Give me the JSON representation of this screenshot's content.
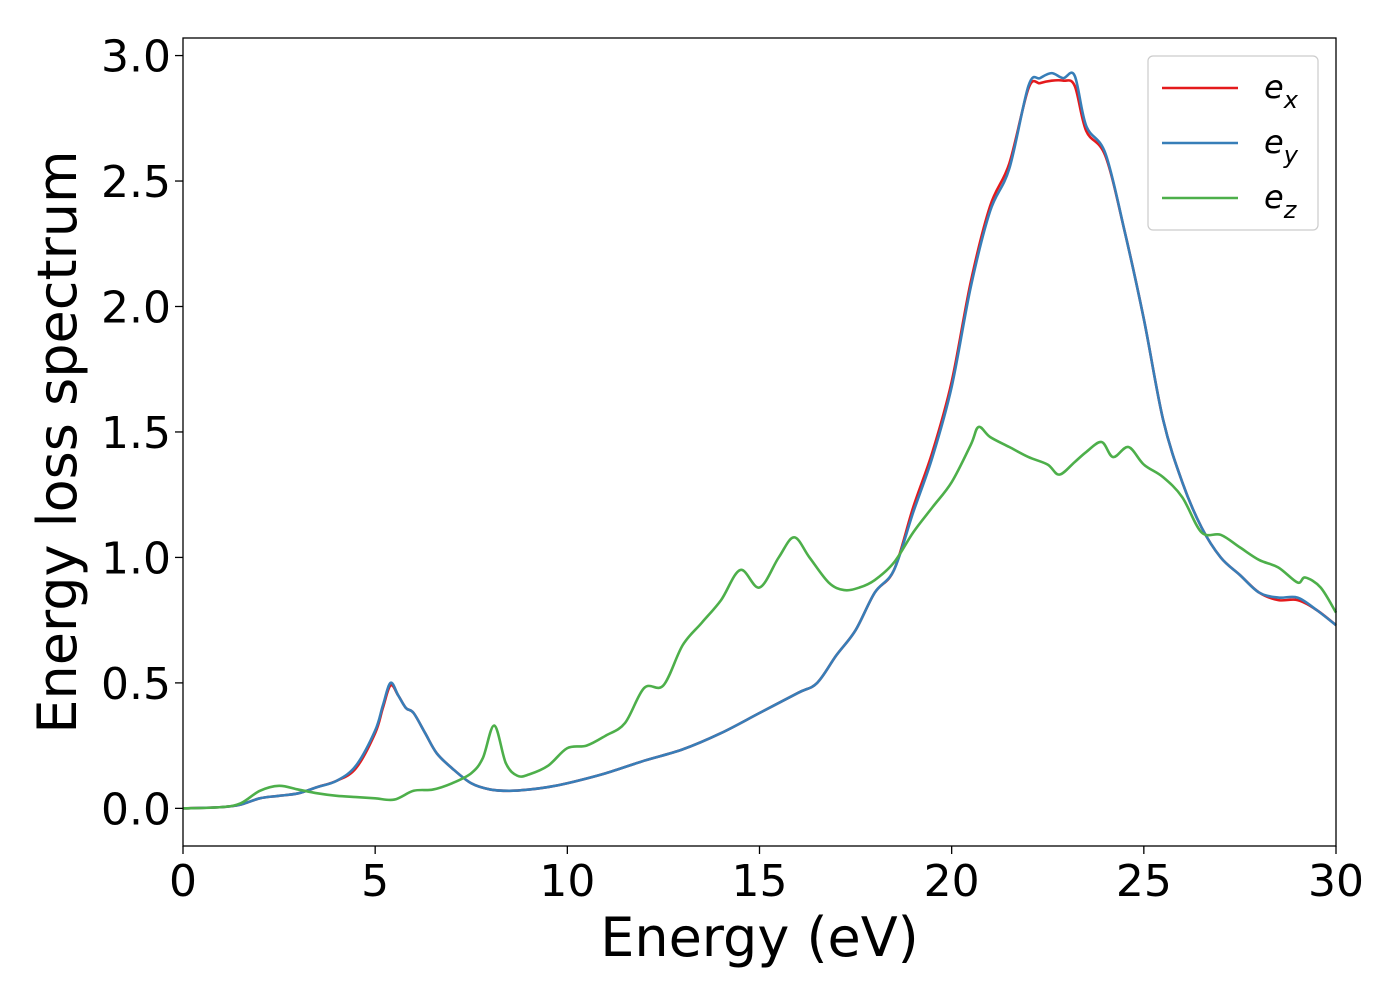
{
  "chart_data": {
    "type": "line",
    "title": "",
    "xlabel": "Energy (eV)",
    "ylabel": "Energy loss spectrum",
    "xlim": [
      0,
      30
    ],
    "ylim": [
      -0.15,
      3.07
    ],
    "xticks": [
      0,
      5,
      10,
      15,
      20,
      25,
      30
    ],
    "xtick_labels": [
      "0",
      "5",
      "10",
      "15",
      "20",
      "25",
      "30"
    ],
    "yticks": [
      0,
      0.5,
      1.0,
      1.5,
      2.0,
      2.5,
      3.0
    ],
    "ytick_labels": [
      "0.0",
      "0.5",
      "1.0",
      "1.5",
      "2.0",
      "2.5",
      "3.0"
    ],
    "grid": false,
    "legend_position": "top-right",
    "series": [
      {
        "name": "e",
        "subscript": "x",
        "color": "#e41a1c",
        "x": [
          0,
          1,
          1.5,
          2,
          2.5,
          3,
          3.5,
          4,
          4.5,
          5,
          5.2,
          5.4,
          5.6,
          5.8,
          6,
          6.3,
          6.6,
          7,
          7.5,
          8,
          8.5,
          9,
          9.5,
          10,
          11,
          12,
          13,
          14,
          15,
          16,
          16.5,
          17,
          17.5,
          18,
          18.5,
          19,
          19.5,
          20,
          20.5,
          21,
          21.5,
          22,
          22.3,
          22.6,
          22.9,
          23.2,
          23.5,
          24,
          24.5,
          25,
          25.5,
          26,
          26.5,
          27,
          27.5,
          28,
          28.5,
          29,
          29.5,
          30
        ],
        "y": [
          0,
          0.005,
          0.015,
          0.04,
          0.05,
          0.06,
          0.085,
          0.11,
          0.16,
          0.3,
          0.4,
          0.49,
          0.45,
          0.4,
          0.38,
          0.3,
          0.22,
          0.16,
          0.1,
          0.075,
          0.07,
          0.075,
          0.085,
          0.1,
          0.14,
          0.19,
          0.235,
          0.3,
          0.38,
          0.46,
          0.5,
          0.61,
          0.71,
          0.86,
          0.95,
          1.2,
          1.42,
          1.7,
          2.1,
          2.4,
          2.57,
          2.87,
          2.89,
          2.9,
          2.9,
          2.88,
          2.7,
          2.6,
          2.3,
          1.95,
          1.55,
          1.3,
          1.12,
          1.0,
          0.93,
          0.86,
          0.83,
          0.83,
          0.79,
          0.73
        ]
      },
      {
        "name": "e",
        "subscript": "y",
        "color": "#377eb8",
        "x": [
          0,
          1,
          1.5,
          2,
          2.5,
          3,
          3.5,
          4,
          4.5,
          5,
          5.2,
          5.4,
          5.6,
          5.8,
          6,
          6.3,
          6.6,
          7,
          7.5,
          8,
          8.5,
          9,
          9.5,
          10,
          11,
          12,
          13,
          14,
          15,
          16,
          16.5,
          17,
          17.5,
          18,
          18.5,
          19,
          19.5,
          20,
          20.5,
          21,
          21.5,
          22,
          22.3,
          22.6,
          22.9,
          23.2,
          23.5,
          24,
          24.5,
          25,
          25.5,
          26,
          26.5,
          27,
          27.5,
          28,
          28.5,
          29,
          29.5,
          30
        ],
        "y": [
          0,
          0.005,
          0.015,
          0.04,
          0.05,
          0.06,
          0.085,
          0.11,
          0.17,
          0.31,
          0.41,
          0.5,
          0.45,
          0.4,
          0.38,
          0.3,
          0.22,
          0.16,
          0.1,
          0.075,
          0.07,
          0.075,
          0.085,
          0.1,
          0.14,
          0.19,
          0.235,
          0.3,
          0.38,
          0.46,
          0.5,
          0.61,
          0.71,
          0.86,
          0.95,
          1.18,
          1.4,
          1.68,
          2.08,
          2.38,
          2.55,
          2.88,
          2.91,
          2.93,
          2.91,
          2.92,
          2.72,
          2.61,
          2.3,
          1.95,
          1.55,
          1.3,
          1.12,
          1.0,
          0.93,
          0.86,
          0.84,
          0.84,
          0.79,
          0.73
        ]
      },
      {
        "name": "e",
        "subscript": "z",
        "color": "#4daf4a",
        "x": [
          0,
          1,
          1.5,
          2,
          2.5,
          3,
          3.5,
          4,
          4.5,
          5,
          5.5,
          6,
          6.5,
          7,
          7.5,
          7.8,
          8.1,
          8.4,
          8.7,
          9,
          9.5,
          10,
          10.5,
          11,
          11.5,
          12,
          12.5,
          13,
          13.5,
          14,
          14.5,
          15,
          15.5,
          15.9,
          16.3,
          16.8,
          17.2,
          17.6,
          18,
          18.5,
          19,
          19.5,
          20,
          20.5,
          20.7,
          21,
          21.5,
          22,
          22.5,
          22.8,
          23.2,
          23.5,
          23.9,
          24.2,
          24.6,
          25,
          25.5,
          26,
          26.5,
          27,
          27.5,
          28,
          28.5,
          29,
          29.2,
          29.6,
          30
        ],
        "y": [
          0,
          0.005,
          0.02,
          0.07,
          0.09,
          0.075,
          0.06,
          0.05,
          0.045,
          0.04,
          0.035,
          0.07,
          0.075,
          0.1,
          0.14,
          0.2,
          0.33,
          0.18,
          0.13,
          0.135,
          0.17,
          0.24,
          0.25,
          0.29,
          0.34,
          0.48,
          0.49,
          0.65,
          0.74,
          0.83,
          0.95,
          0.88,
          1.0,
          1.08,
          1.0,
          0.9,
          0.87,
          0.88,
          0.91,
          0.98,
          1.1,
          1.2,
          1.3,
          1.45,
          1.52,
          1.48,
          1.44,
          1.4,
          1.37,
          1.33,
          1.38,
          1.42,
          1.46,
          1.4,
          1.44,
          1.37,
          1.32,
          1.24,
          1.1,
          1.09,
          1.04,
          0.99,
          0.96,
          0.9,
          0.92,
          0.88,
          0.78
        ]
      }
    ]
  }
}
